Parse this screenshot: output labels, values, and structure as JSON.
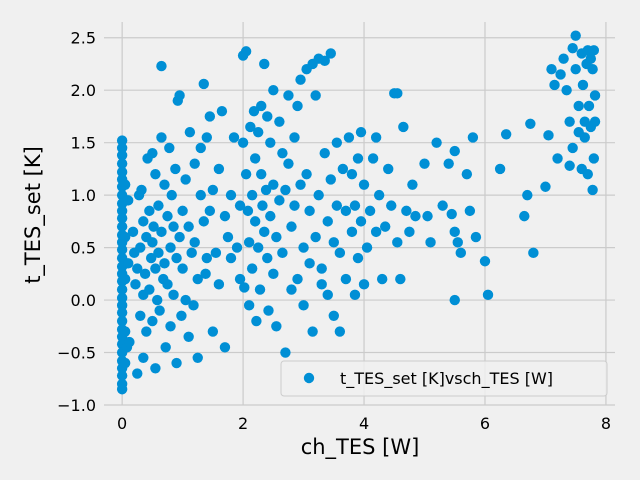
{
  "chart_data": {
    "type": "scatter",
    "title": "",
    "xlabel": "ch_TES [W]",
    "ylabel": "t_TES_set [K]",
    "xlim": [
      -0.3,
      8.15
    ],
    "ylim": [
      -1.0,
      2.65
    ],
    "xticks": [
      0,
      2,
      4,
      6,
      8
    ],
    "yticks": [
      -1.0,
      -0.5,
      0.0,
      0.5,
      1.0,
      1.5,
      2.0,
      2.5
    ],
    "xtick_labels": [
      "0",
      "2",
      "4",
      "6",
      "8"
    ],
    "ytick_labels": [
      "−1.0",
      "−0.5",
      "0.0",
      "0.5",
      "1.0",
      "1.5",
      "2.0",
      "2.5"
    ],
    "grid": true,
    "legend_position": "lower-right",
    "colors": {
      "series": "#008fd5",
      "background": "#f0f0f0",
      "grid": "#cbcbcb"
    },
    "series": [
      {
        "name": "t_TES_set [K]vsch_TES [W]",
        "points": [
          [
            0.0,
            1.52
          ],
          [
            0.0,
            1.45
          ],
          [
            0.0,
            1.38
          ],
          [
            0.0,
            1.3
          ],
          [
            0.0,
            1.22
          ],
          [
            0.0,
            1.15
          ],
          [
            0.0,
            1.08
          ],
          [
            0.0,
            1.0
          ],
          [
            0.0,
            0.92
          ],
          [
            0.0,
            0.85
          ],
          [
            0.0,
            0.78
          ],
          [
            0.0,
            0.7
          ],
          [
            0.0,
            0.62
          ],
          [
            0.0,
            0.55
          ],
          [
            0.0,
            0.48
          ],
          [
            0.0,
            0.4
          ],
          [
            0.0,
            0.32
          ],
          [
            0.0,
            0.25
          ],
          [
            0.0,
            0.18
          ],
          [
            0.0,
            0.1
          ],
          [
            0.0,
            0.02
          ],
          [
            0.0,
            -0.05
          ],
          [
            0.0,
            -0.12
          ],
          [
            0.0,
            -0.2
          ],
          [
            0.0,
            -0.28
          ],
          [
            0.0,
            -0.35
          ],
          [
            0.0,
            -0.42
          ],
          [
            0.0,
            -0.5
          ],
          [
            0.0,
            -0.58
          ],
          [
            0.0,
            -0.65
          ],
          [
            0.0,
            -0.72
          ],
          [
            0.0,
            -0.8
          ],
          [
            0.0,
            -0.85
          ],
          [
            0.05,
            1.1
          ],
          [
            0.05,
            0.6
          ],
          [
            0.05,
            0.2
          ],
          [
            0.05,
            -0.3
          ],
          [
            0.05,
            -0.6
          ],
          [
            0.08,
            -0.45
          ],
          [
            0.1,
            0.95
          ],
          [
            0.1,
            0.35
          ],
          [
            0.12,
            -0.4
          ],
          [
            0.18,
            0.65
          ],
          [
            0.2,
            0.45
          ],
          [
            0.22,
            0.15
          ],
          [
            0.25,
            0.3
          ],
          [
            0.25,
            -0.7
          ],
          [
            0.28,
            1.0
          ],
          [
            0.3,
            0.5
          ],
          [
            0.3,
            -0.15
          ],
          [
            0.32,
            1.05
          ],
          [
            0.35,
            0.75
          ],
          [
            0.35,
            0.05
          ],
          [
            0.35,
            -0.55
          ],
          [
            0.38,
            0.25
          ],
          [
            0.4,
            0.6
          ],
          [
            0.4,
            -0.3
          ],
          [
            0.42,
            1.35
          ],
          [
            0.45,
            0.85
          ],
          [
            0.45,
            0.1
          ],
          [
            0.48,
            0.4
          ],
          [
            0.5,
            1.4
          ],
          [
            0.5,
            0.55
          ],
          [
            0.5,
            -0.2
          ],
          [
            0.52,
            0.7
          ],
          [
            0.55,
            1.2
          ],
          [
            0.55,
            0.3
          ],
          [
            0.55,
            -0.65
          ],
          [
            0.58,
            0.0
          ],
          [
            0.6,
            0.9
          ],
          [
            0.6,
            0.45
          ],
          [
            0.62,
            -0.1
          ],
          [
            0.65,
            1.55
          ],
          [
            0.65,
            0.65
          ],
          [
            0.65,
            2.23
          ],
          [
            0.68,
            0.2
          ],
          [
            0.7,
            1.1
          ],
          [
            0.7,
            0.35
          ],
          [
            0.72,
            -0.45
          ],
          [
            0.75,
            0.8
          ],
          [
            0.75,
            0.15
          ],
          [
            0.78,
            1.45
          ],
          [
            0.8,
            0.5
          ],
          [
            0.8,
            -0.25
          ],
          [
            0.82,
            1.0
          ],
          [
            0.85,
            0.7
          ],
          [
            0.85,
            0.05
          ],
          [
            0.88,
            1.25
          ],
          [
            0.9,
            0.4
          ],
          [
            0.9,
            -0.6
          ],
          [
            0.92,
            1.9
          ],
          [
            0.95,
            1.95
          ],
          [
            0.95,
            0.6
          ],
          [
            0.98,
            -0.15
          ],
          [
            1.0,
            0.85
          ],
          [
            1.0,
            0.3
          ],
          [
            1.05,
            1.15
          ],
          [
            1.05,
            0.0
          ],
          [
            1.1,
            0.7
          ],
          [
            1.1,
            -0.35
          ],
          [
            1.12,
            1.6
          ],
          [
            1.15,
            0.45
          ],
          [
            1.18,
            -0.05
          ],
          [
            1.2,
            1.3
          ],
          [
            1.2,
            0.55
          ],
          [
            1.25,
            0.2
          ],
          [
            1.25,
            -0.55
          ],
          [
            1.3,
            1.0
          ],
          [
            1.3,
            1.45
          ],
          [
            1.35,
            2.06
          ],
          [
            1.35,
            0.75
          ],
          [
            1.38,
            0.25
          ],
          [
            1.4,
            1.55
          ],
          [
            1.4,
            0.4
          ],
          [
            1.45,
            1.75
          ],
          [
            1.45,
            0.85
          ],
          [
            1.5,
            1.05
          ],
          [
            1.5,
            -0.3
          ],
          [
            1.55,
            0.45
          ],
          [
            1.6,
            1.25
          ],
          [
            1.6,
            0.15
          ],
          [
            1.65,
            1.8
          ],
          [
            1.7,
            0.8
          ],
          [
            1.7,
            -0.45
          ],
          [
            1.75,
            0.6
          ],
          [
            1.8,
            1.0
          ],
          [
            1.8,
            0.4
          ],
          [
            1.85,
            1.55
          ],
          [
            1.9,
            0.5
          ],
          [
            1.95,
            0.2
          ],
          [
            1.95,
            0.9
          ],
          [
            2.0,
            2.33
          ],
          [
            2.0,
            1.5
          ],
          [
            2.02,
            0.12
          ],
          [
            2.05,
            2.37
          ],
          [
            2.05,
            1.2
          ],
          [
            2.08,
            0.85
          ],
          [
            2.1,
            0.55
          ],
          [
            2.1,
            -0.05
          ],
          [
            2.12,
            1.65
          ],
          [
            2.15,
            1.0
          ],
          [
            2.15,
            0.3
          ],
          [
            2.18,
            1.8
          ],
          [
            2.2,
            1.35
          ],
          [
            2.2,
            0.75
          ],
          [
            2.22,
            -0.2
          ],
          [
            2.25,
            1.6
          ],
          [
            2.25,
            0.5
          ],
          [
            2.28,
            0.1
          ],
          [
            2.3,
            1.85
          ],
          [
            2.3,
            1.2
          ],
          [
            2.32,
            0.9
          ],
          [
            2.35,
            2.25
          ],
          [
            2.35,
            0.65
          ],
          [
            2.38,
            1.05
          ],
          [
            2.4,
            1.75
          ],
          [
            2.4,
            0.4
          ],
          [
            2.42,
            -0.1
          ],
          [
            2.45,
            1.5
          ],
          [
            2.45,
            0.8
          ],
          [
            2.5,
            2.0
          ],
          [
            2.5,
            1.1
          ],
          [
            2.5,
            0.25
          ],
          [
            2.55,
            0.6
          ],
          [
            2.55,
            -0.25
          ],
          [
            2.6,
            1.7
          ],
          [
            2.6,
            0.95
          ],
          [
            2.65,
            1.4
          ],
          [
            2.65,
            0.45
          ],
          [
            2.7,
            1.05
          ],
          [
            2.7,
            -0.5
          ],
          [
            2.75,
            1.95
          ],
          [
            2.75,
            1.3
          ],
          [
            2.8,
            0.7
          ],
          [
            2.8,
            0.1
          ],
          [
            2.85,
            1.55
          ],
          [
            2.85,
            0.9
          ],
          [
            2.9,
            1.85
          ],
          [
            2.9,
            0.2
          ],
          [
            2.95,
            2.1
          ],
          [
            2.95,
            1.1
          ],
          [
            3.0,
            0.5
          ],
          [
            3.0,
            -0.05
          ],
          [
            3.05,
            2.2
          ],
          [
            3.05,
            1.2
          ],
          [
            3.1,
            0.85
          ],
          [
            3.1,
            0.35
          ],
          [
            3.15,
            2.25
          ],
          [
            3.15,
            -0.3
          ],
          [
            3.2,
            1.95
          ],
          [
            3.2,
            0.6
          ],
          [
            3.25,
            2.3
          ],
          [
            3.25,
            1.0
          ],
          [
            3.3,
            0.3
          ],
          [
            3.3,
            0.15
          ],
          [
            3.35,
            2.28
          ],
          [
            3.35,
            1.4
          ],
          [
            3.4,
            0.75
          ],
          [
            3.4,
            0.05
          ],
          [
            3.45,
            2.35
          ],
          [
            3.45,
            1.15
          ],
          [
            3.5,
            0.55
          ],
          [
            3.5,
            -0.15
          ],
          [
            3.55,
            1.5
          ],
          [
            3.55,
            0.9
          ],
          [
            3.6,
            0.45
          ],
          [
            3.6,
            -0.3
          ],
          [
            3.65,
            1.25
          ],
          [
            3.7,
            0.85
          ],
          [
            3.7,
            0.2
          ],
          [
            3.75,
            1.55
          ],
          [
            3.8,
            1.2
          ],
          [
            3.8,
            0.65
          ],
          [
            3.85,
            0.9
          ],
          [
            3.85,
            0.05
          ],
          [
            3.9,
            1.35
          ],
          [
            3.9,
            0.4
          ],
          [
            3.95,
            1.6
          ],
          [
            3.95,
            0.75
          ],
          [
            4.0,
            1.1
          ],
          [
            4.0,
            0.15
          ],
          [
            4.05,
            0.5
          ],
          [
            4.1,
            0.85
          ],
          [
            4.15,
            1.35
          ],
          [
            4.2,
            1.55
          ],
          [
            4.2,
            0.65
          ],
          [
            4.25,
            1.0
          ],
          [
            4.3,
            0.2
          ],
          [
            4.35,
            0.7
          ],
          [
            4.4,
            1.25
          ],
          [
            4.45,
            0.9
          ],
          [
            4.5,
            1.97
          ],
          [
            4.55,
            1.97
          ],
          [
            4.55,
            0.55
          ],
          [
            4.6,
            0.2
          ],
          [
            4.65,
            1.65
          ],
          [
            4.7,
            0.85
          ],
          [
            4.75,
            0.65
          ],
          [
            4.8,
            1.1
          ],
          [
            4.85,
            0.8
          ],
          [
            5.0,
            1.3
          ],
          [
            5.05,
            0.8
          ],
          [
            5.1,
            0.55
          ],
          [
            5.2,
            1.5
          ],
          [
            5.3,
            0.9
          ],
          [
            5.4,
            1.3
          ],
          [
            5.45,
            0.82
          ],
          [
            5.5,
            1.42
          ],
          [
            5.5,
            0.65
          ],
          [
            5.5,
            0.0
          ],
          [
            5.55,
            0.55
          ],
          [
            5.6,
            0.45
          ],
          [
            5.7,
            1.2
          ],
          [
            5.75,
            0.85
          ],
          [
            5.8,
            1.55
          ],
          [
            5.85,
            0.6
          ],
          [
            6.0,
            0.37
          ],
          [
            6.05,
            0.05
          ],
          [
            6.25,
            1.25
          ],
          [
            6.35,
            1.58
          ],
          [
            6.65,
            0.8
          ],
          [
            6.7,
            1.0
          ],
          [
            6.75,
            1.68
          ],
          [
            6.8,
            0.45
          ],
          [
            7.0,
            1.08
          ],
          [
            7.05,
            1.57
          ],
          [
            7.1,
            2.2
          ],
          [
            7.15,
            2.05
          ],
          [
            7.2,
            1.35
          ],
          [
            7.25,
            2.15
          ],
          [
            7.3,
            2.3
          ],
          [
            7.35,
            2.0
          ],
          [
            7.4,
            1.7
          ],
          [
            7.4,
            1.28
          ],
          [
            7.45,
            2.4
          ],
          [
            7.45,
            1.45
          ],
          [
            7.5,
            2.52
          ],
          [
            7.5,
            2.2
          ],
          [
            7.55,
            1.85
          ],
          [
            7.55,
            1.6
          ],
          [
            7.6,
            2.35
          ],
          [
            7.6,
            1.25
          ],
          [
            7.62,
            2.05
          ],
          [
            7.65,
            1.7
          ],
          [
            7.65,
            1.55
          ],
          [
            7.68,
            2.25
          ],
          [
            7.7,
            2.38
          ],
          [
            7.7,
            1.2
          ],
          [
            7.72,
            1.85
          ],
          [
            7.75,
            2.3
          ],
          [
            7.75,
            1.65
          ],
          [
            7.78,
            2.2
          ],
          [
            7.78,
            1.05
          ],
          [
            7.8,
            2.38
          ],
          [
            7.8,
            1.35
          ],
          [
            7.82,
            1.95
          ],
          [
            7.82,
            1.7
          ]
        ]
      }
    ]
  }
}
